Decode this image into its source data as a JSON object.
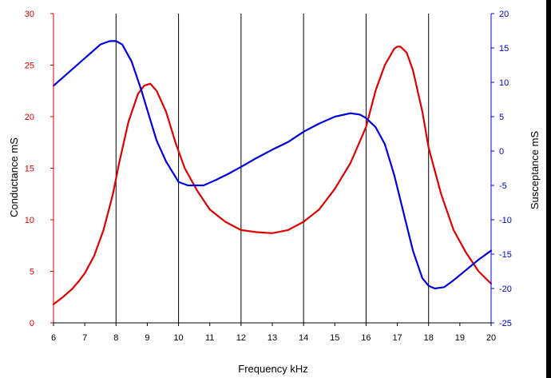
{
  "chart_data": {
    "type": "line",
    "xlabel": "Frequency kHz",
    "ylabel_left": "Conductance mS",
    "ylabel_right": "Susceptance mS",
    "xlim": [
      6,
      20
    ],
    "ylim_left": [
      0,
      30
    ],
    "ylim_right": [
      -25,
      20
    ],
    "x_ticks": [
      "6",
      "7",
      "8",
      "9",
      "10",
      "11",
      "12",
      "13",
      "14",
      "15",
      "16",
      "17",
      "18",
      "19",
      "20"
    ],
    "y_left_ticks": [
      "0",
      "5",
      "10",
      "15",
      "20",
      "25",
      "30"
    ],
    "y_right_ticks": [
      "-25",
      "-20",
      "-15",
      "-10",
      "-5",
      "0",
      "5",
      "10",
      "15",
      "20"
    ],
    "vertical_gridlines_at": [
      8,
      10,
      12,
      14,
      16,
      18
    ],
    "colors": {
      "conductance": "#e00000",
      "susceptance": "#0000e0",
      "grid": "#000000"
    },
    "series": [
      {
        "axis": "left",
        "color": "#e00000",
        "x": [
          6.0,
          6.3,
          6.6,
          6.8,
          7.0,
          7.3,
          7.6,
          7.9,
          8.1,
          8.4,
          8.7,
          8.9,
          9.1,
          9.3,
          9.6,
          9.9,
          10.2,
          10.6,
          11.0,
          11.5,
          12.0,
          12.5,
          13.0,
          13.5,
          14.0,
          14.5,
          15.0,
          15.5,
          16.0,
          16.3,
          16.6,
          16.9,
          17.0,
          17.1,
          17.3,
          17.5,
          17.8,
          18.0,
          18.4,
          18.8,
          19.2,
          19.6,
          20.0
        ],
        "y": [
          1.8,
          2.5,
          3.3,
          4.0,
          4.8,
          6.5,
          9.0,
          12.5,
          15.5,
          19.5,
          22.2,
          23.0,
          23.2,
          22.5,
          20.5,
          17.5,
          15.0,
          12.8,
          11.0,
          9.8,
          9.0,
          8.8,
          8.7,
          9.0,
          9.8,
          11.0,
          13.0,
          15.5,
          19.0,
          22.5,
          25.0,
          26.6,
          26.8,
          26.8,
          26.2,
          24.5,
          20.5,
          17.0,
          12.5,
          9.0,
          6.8,
          5.0,
          3.8
        ]
      },
      {
        "axis": "right",
        "color": "#0000e0",
        "x": [
          6.0,
          6.5,
          7.0,
          7.5,
          7.8,
          8.0,
          8.2,
          8.5,
          8.8,
          9.0,
          9.3,
          9.6,
          10.0,
          10.3,
          10.8,
          11.2,
          11.6,
          12.0,
          12.5,
          13.0,
          13.5,
          14.0,
          14.5,
          15.0,
          15.5,
          15.8,
          16.0,
          16.3,
          16.6,
          16.9,
          17.2,
          17.5,
          17.8,
          18.0,
          18.2,
          18.5,
          18.8,
          19.2,
          19.6,
          20.0
        ],
        "y": [
          9.5,
          11.5,
          13.5,
          15.5,
          16.0,
          16.0,
          15.5,
          13.0,
          9.0,
          6.0,
          1.5,
          -1.5,
          -4.5,
          -5.0,
          -5.0,
          -4.2,
          -3.3,
          -2.3,
          -1.0,
          0.2,
          1.3,
          2.8,
          4.0,
          5.0,
          5.5,
          5.3,
          4.8,
          3.5,
          1.0,
          -3.5,
          -9.0,
          -14.5,
          -18.5,
          -19.6,
          -20.0,
          -19.8,
          -18.8,
          -17.3,
          -15.8,
          -14.5
        ]
      }
    ]
  }
}
